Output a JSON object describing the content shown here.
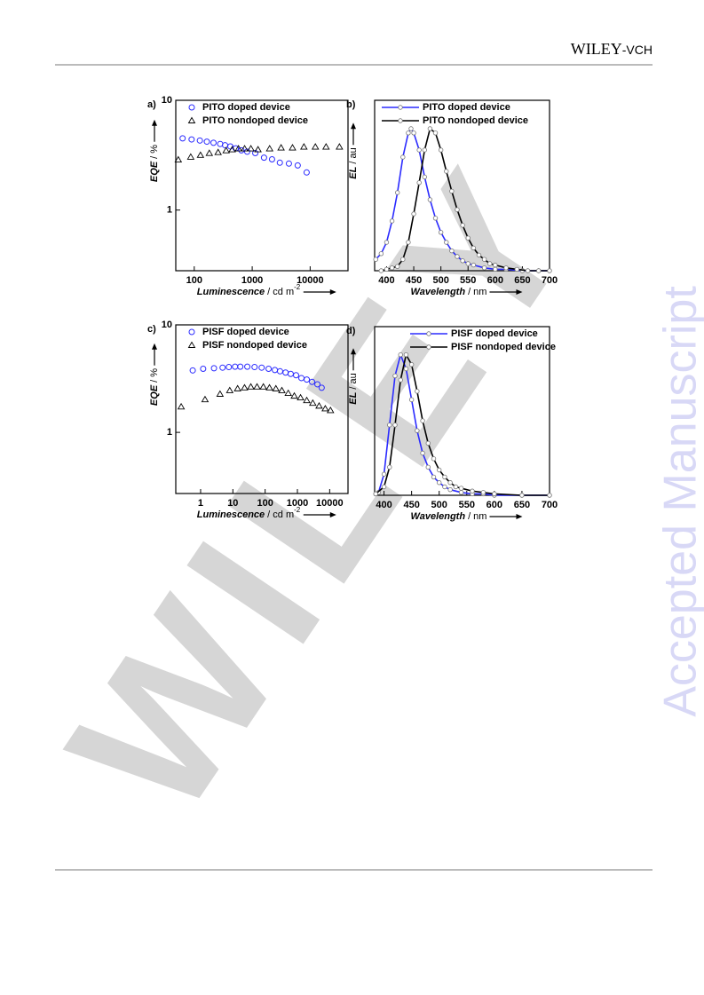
{
  "header": {
    "brand": "WILEY",
    "suffix": "-VCH"
  },
  "watermark": {
    "diagonal": "WILEY",
    "side": "Accepted Manuscript"
  },
  "chart_data": [
    {
      "type": "scatter",
      "panel_label": "a)",
      "xlabel": {
        "quantity": "Luminescence",
        "unit": "/ cd m",
        "exponent": "-2"
      },
      "ylabel": {
        "quantity": "EQE",
        "unit": "/ %"
      },
      "xscale": "log",
      "yscale": "log",
      "xlim": [
        48,
        45000
      ],
      "ylim": [
        0.28,
        10
      ],
      "xticks": [
        100,
        1000,
        10000
      ],
      "yticks": [
        1,
        10
      ],
      "legend": "upper left",
      "series": [
        {
          "name": "PITO doped device",
          "color": "#2b2bff",
          "marker": "circle",
          "x": [
            63,
            90,
            125,
            165,
            215,
            280,
            340,
            420,
            520,
            650,
            820,
            1130,
            1600,
            2200,
            3000,
            4300,
            6100,
            8700
          ],
          "values": [
            4.5,
            4.4,
            4.3,
            4.2,
            4.1,
            4.0,
            3.9,
            3.8,
            3.65,
            3.5,
            3.4,
            3.3,
            3.0,
            2.9,
            2.7,
            2.65,
            2.55,
            2.2
          ]
        },
        {
          "name": "PITO nondoped device",
          "color": "#000000",
          "marker": "triangle",
          "x": [
            53,
            87,
            128,
            182,
            258,
            355,
            452,
            580,
            740,
            950,
            1260,
            2000,
            3150,
            4960,
            7800,
            12300,
            18800,
            32000
          ],
          "values": [
            2.87,
            3.04,
            3.16,
            3.29,
            3.35,
            3.48,
            3.55,
            3.62,
            3.62,
            3.62,
            3.55,
            3.62,
            3.69,
            3.69,
            3.76,
            3.76,
            3.76,
            3.76
          ]
        }
      ]
    },
    {
      "type": "line",
      "panel_label": "b)",
      "xlabel": {
        "quantity": "Wavelength",
        "unit": "/ nm"
      },
      "ylabel": {
        "quantity": "EL",
        "unit": "/ au"
      },
      "xlim": [
        378,
        700
      ],
      "ylim": [
        0,
        1.2
      ],
      "xticks": [
        400,
        450,
        500,
        550,
        600,
        650,
        700
      ],
      "legend": "upper left",
      "series": [
        {
          "name": "PITO doped device",
          "color": "#2b2bff",
          "marker": "circle",
          "x": [
            380,
            390,
            400,
            410,
            420,
            430,
            440,
            445,
            450,
            460,
            470,
            480,
            490,
            500,
            510,
            520,
            530,
            540,
            550,
            560,
            580,
            600,
            620,
            650,
            680,
            700
          ],
          "values": [
            0.08,
            0.12,
            0.2,
            0.35,
            0.55,
            0.8,
            0.97,
            1.0,
            0.97,
            0.85,
            0.66,
            0.5,
            0.37,
            0.27,
            0.2,
            0.14,
            0.1,
            0.07,
            0.05,
            0.04,
            0.02,
            0.01,
            0.01,
            0,
            0,
            0
          ]
        },
        {
          "name": "PITO nondoped device",
          "color": "#000000",
          "marker": "circle",
          "x": [
            390,
            400,
            410,
            420,
            430,
            440,
            450,
            460,
            470,
            480,
            490,
            500,
            510,
            520,
            530,
            540,
            550,
            560,
            570,
            580,
            590,
            600,
            620,
            640,
            660,
            680,
            700
          ],
          "values": [
            0,
            0.01,
            0.02,
            0.03,
            0.08,
            0.2,
            0.4,
            0.62,
            0.85,
            1.0,
            0.97,
            0.85,
            0.7,
            0.56,
            0.43,
            0.32,
            0.23,
            0.16,
            0.11,
            0.08,
            0.05,
            0.04,
            0.02,
            0.01,
            0,
            0,
            0
          ]
        }
      ]
    },
    {
      "type": "scatter",
      "panel_label": "c)",
      "xlabel": {
        "quantity": "Luminescence",
        "unit": "/ cd m",
        "exponent": "-2"
      },
      "ylabel": {
        "quantity": "EQE",
        "unit": "/ %"
      },
      "xscale": "log",
      "yscale": "log",
      "xlim": [
        0.17,
        37000
      ],
      "ylim": [
        0.27,
        10
      ],
      "xticks": [
        1,
        10,
        100,
        1000,
        10000
      ],
      "yticks": [
        1,
        10
      ],
      "legend": "upper left",
      "series": [
        {
          "name": "PISF doped device",
          "color": "#2b2bff",
          "marker": "circle",
          "x": [
            0.57,
            1.2,
            2.6,
            4.8,
            7.5,
            11.7,
            17,
            28,
            47,
            78,
            128,
            200,
            290,
            430,
            620,
            910,
            1330,
            1950,
            2850,
            4170,
            5650
          ],
          "values": [
            3.77,
            3.9,
            3.95,
            4.0,
            4.05,
            4.08,
            4.08,
            4.08,
            4.05,
            4.0,
            3.9,
            3.8,
            3.7,
            3.6,
            3.5,
            3.4,
            3.2,
            3.1,
            2.95,
            2.8,
            2.6
          ]
        },
        {
          "name": "PISF nondoped device",
          "color": "#000000",
          "marker": "triangle",
          "x": [
            0.25,
            1.37,
            4,
            8,
            14,
            23,
            36,
            56,
            88,
            136,
            215,
            330,
            520,
            800,
            1250,
            1950,
            3000,
            4700,
            7300,
            10600
          ],
          "values": [
            1.73,
            2.02,
            2.27,
            2.45,
            2.55,
            2.6,
            2.65,
            2.65,
            2.65,
            2.6,
            2.55,
            2.45,
            2.31,
            2.18,
            2.1,
            1.98,
            1.87,
            1.76,
            1.66,
            1.6
          ]
        }
      ]
    },
    {
      "type": "line",
      "panel_label": "d)",
      "xlabel": {
        "quantity": "Wavelength",
        "unit": "/ nm"
      },
      "ylabel": {
        "quantity": "EL",
        "unit": "/ au"
      },
      "xlim": [
        383,
        700
      ],
      "ylim": [
        0,
        1.2
      ],
      "xticks": [
        400,
        450,
        500,
        550,
        600,
        650,
        700
      ],
      "legend": "upper center",
      "series": [
        {
          "name": "PISF doped device",
          "color": "#2b2bff",
          "marker": "circle",
          "x": [
            385,
            390,
            400,
            410,
            420,
            430,
            440,
            450,
            460,
            470,
            480,
            490,
            500,
            510,
            520,
            540,
            560,
            580,
            600,
            650,
            700
          ],
          "values": [
            0.01,
            0.02,
            0.15,
            0.5,
            0.85,
            1.0,
            0.9,
            0.68,
            0.46,
            0.3,
            0.2,
            0.13,
            0.09,
            0.06,
            0.04,
            0.02,
            0.01,
            0.01,
            0,
            0,
            0
          ]
        },
        {
          "name": "PISF nondoped device",
          "color": "#000000",
          "marker": "circle",
          "x": [
            385,
            400,
            410,
            420,
            430,
            440,
            450,
            460,
            470,
            480,
            490,
            500,
            510,
            520,
            530,
            540,
            560,
            580,
            600,
            650,
            700
          ],
          "values": [
            0.01,
            0.06,
            0.2,
            0.5,
            0.82,
            1.0,
            0.93,
            0.74,
            0.53,
            0.37,
            0.26,
            0.18,
            0.13,
            0.09,
            0.06,
            0.05,
            0.03,
            0.02,
            0.01,
            0,
            0
          ]
        }
      ]
    }
  ]
}
